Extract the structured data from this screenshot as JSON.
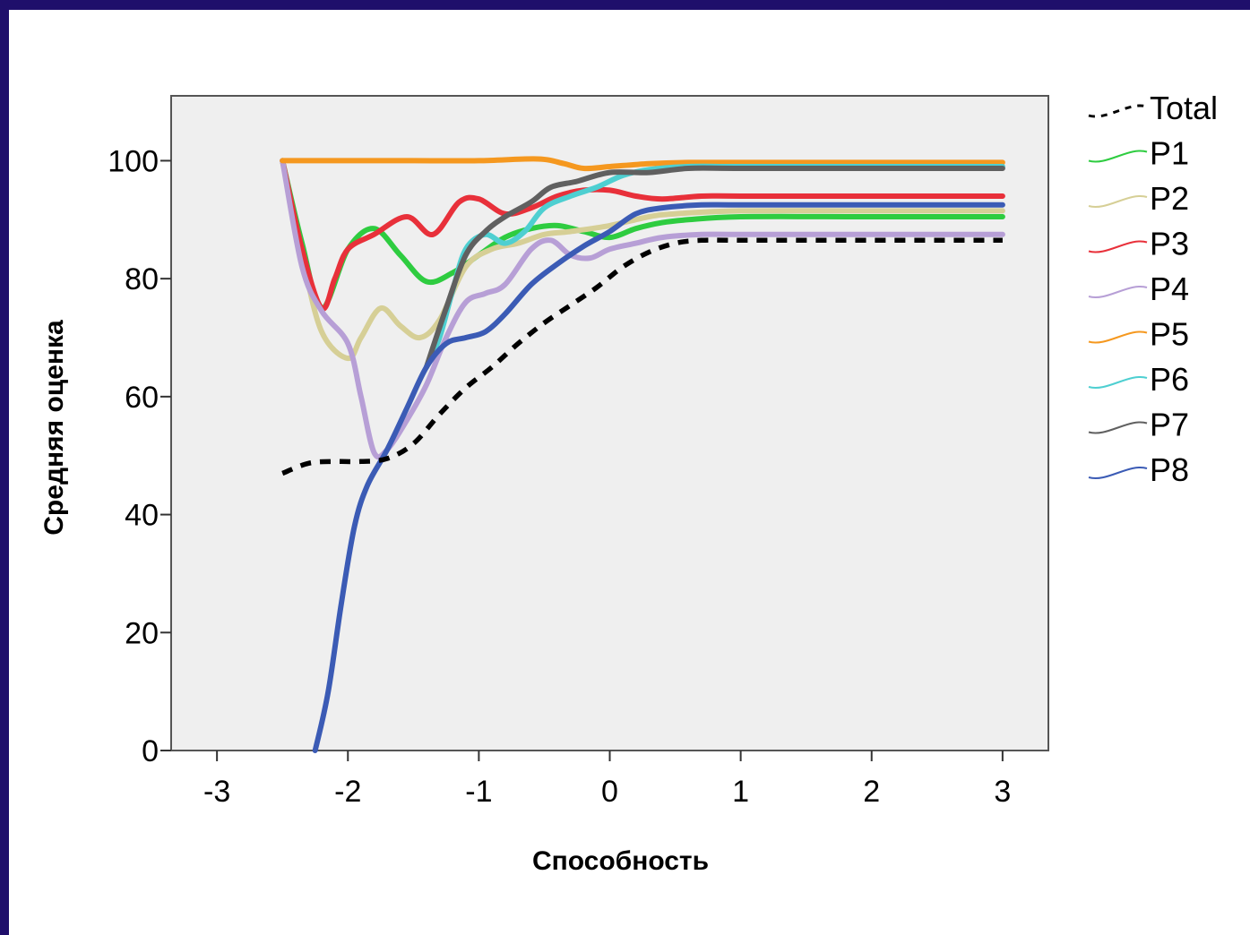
{
  "chart_data": {
    "type": "line",
    "xlabel": "Способность",
    "ylabel": "Средняя оценка",
    "xlim": [
      -3.35,
      3.35
    ],
    "ylim": [
      0,
      111
    ],
    "x_ticks": [
      -3,
      -2,
      -1,
      0,
      1,
      2,
      3
    ],
    "x_tick_labels": [
      "-3",
      "-2",
      "-1",
      "0",
      "1",
      "2",
      "3"
    ],
    "y_ticks": [
      0,
      20,
      40,
      60,
      80,
      100
    ],
    "y_tick_labels": [
      "0",
      "20",
      "40",
      "60",
      "80",
      "100"
    ],
    "grid": false,
    "plot_background": "#efefef",
    "legend_position": "right",
    "series": [
      {
        "name": "Total",
        "color": "#000000",
        "dashed": true,
        "points": [
          [
            -2.5,
            47
          ],
          [
            -2.3,
            48.7
          ],
          [
            -2.1,
            49
          ],
          [
            -1.9,
            49
          ],
          [
            -1.7,
            49.5
          ],
          [
            -1.5,
            52
          ],
          [
            -1.3,
            57
          ],
          [
            -1.1,
            61.5
          ],
          [
            -0.9,
            65
          ],
          [
            -0.7,
            69
          ],
          [
            -0.5,
            72.5
          ],
          [
            -0.3,
            75.5
          ],
          [
            -0.1,
            78.5
          ],
          [
            0.1,
            82
          ],
          [
            0.3,
            84.5
          ],
          [
            0.5,
            86
          ],
          [
            0.7,
            86.5
          ],
          [
            1.0,
            86.5
          ],
          [
            2.0,
            86.5
          ],
          [
            3.0,
            86.5
          ]
        ]
      },
      {
        "name": "P1",
        "color": "#2ecc40",
        "dashed": false,
        "points": [
          [
            -2.5,
            100
          ],
          [
            -2.35,
            86
          ],
          [
            -2.2,
            75
          ],
          [
            -2.0,
            85
          ],
          [
            -1.8,
            88.5
          ],
          [
            -1.6,
            84
          ],
          [
            -1.4,
            79.5
          ],
          [
            -1.2,
            81
          ],
          [
            -1.0,
            84
          ],
          [
            -0.8,
            87
          ],
          [
            -0.6,
            88.5
          ],
          [
            -0.4,
            89
          ],
          [
            -0.2,
            88
          ],
          [
            0.0,
            87
          ],
          [
            0.2,
            88.5
          ],
          [
            0.4,
            89.5
          ],
          [
            0.6,
            90
          ],
          [
            1.0,
            90.5
          ],
          [
            2.0,
            90.5
          ],
          [
            3.0,
            90.5
          ]
        ]
      },
      {
        "name": "P2",
        "color": "#d6cf96",
        "dashed": false,
        "points": [
          [
            -2.5,
            100
          ],
          [
            -2.35,
            84
          ],
          [
            -2.2,
            71
          ],
          [
            -2.0,
            66.5
          ],
          [
            -1.9,
            70
          ],
          [
            -1.75,
            75
          ],
          [
            -1.6,
            72
          ],
          [
            -1.45,
            70
          ],
          [
            -1.3,
            73
          ],
          [
            -1.1,
            82
          ],
          [
            -0.9,
            85
          ],
          [
            -0.7,
            86
          ],
          [
            -0.5,
            87.5
          ],
          [
            -0.3,
            88
          ],
          [
            0.0,
            89
          ],
          [
            0.3,
            90.5
          ],
          [
            0.5,
            91
          ],
          [
            1.0,
            91.5
          ],
          [
            2.0,
            91.5
          ],
          [
            3.0,
            91.5
          ]
        ]
      },
      {
        "name": "P3",
        "color": "#e8303a",
        "dashed": false,
        "points": [
          [
            -2.5,
            100
          ],
          [
            -2.35,
            85
          ],
          [
            -2.2,
            75
          ],
          [
            -2.1,
            80
          ],
          [
            -2.0,
            85
          ],
          [
            -1.8,
            87.5
          ],
          [
            -1.55,
            90.5
          ],
          [
            -1.35,
            87.5
          ],
          [
            -1.15,
            93
          ],
          [
            -1.0,
            93.5
          ],
          [
            -0.8,
            91
          ],
          [
            -0.6,
            92
          ],
          [
            -0.4,
            94
          ],
          [
            -0.2,
            95
          ],
          [
            0.0,
            95
          ],
          [
            0.2,
            94
          ],
          [
            0.4,
            93.5
          ],
          [
            0.7,
            94
          ],
          [
            1.0,
            94
          ],
          [
            2.0,
            94
          ],
          [
            3.0,
            94
          ]
        ]
      },
      {
        "name": "P4",
        "color": "#b79fd6",
        "dashed": false,
        "points": [
          [
            -2.5,
            100
          ],
          [
            -2.35,
            82
          ],
          [
            -2.2,
            74.5
          ],
          [
            -2.0,
            69
          ],
          [
            -1.9,
            60
          ],
          [
            -1.8,
            50.5
          ],
          [
            -1.7,
            51
          ],
          [
            -1.55,
            56
          ],
          [
            -1.4,
            62
          ],
          [
            -1.25,
            70
          ],
          [
            -1.1,
            76
          ],
          [
            -0.95,
            77.5
          ],
          [
            -0.8,
            79
          ],
          [
            -0.6,
            85
          ],
          [
            -0.45,
            86.5
          ],
          [
            -0.3,
            84
          ],
          [
            -0.15,
            83.5
          ],
          [
            0.0,
            85
          ],
          [
            0.2,
            86
          ],
          [
            0.4,
            87
          ],
          [
            0.7,
            87.5
          ],
          [
            1.0,
            87.5
          ],
          [
            2.0,
            87.5
          ],
          [
            3.0,
            87.5
          ]
        ]
      },
      {
        "name": "P5",
        "color": "#f5981f",
        "dashed": false,
        "points": [
          [
            -2.5,
            100
          ],
          [
            -2.0,
            100
          ],
          [
            -1.5,
            100
          ],
          [
            -1.0,
            100
          ],
          [
            -0.55,
            100.3
          ],
          [
            -0.35,
            99.5
          ],
          [
            -0.2,
            98.7
          ],
          [
            0.0,
            99
          ],
          [
            0.3,
            99.5
          ],
          [
            0.6,
            99.7
          ],
          [
            1.0,
            99.7
          ],
          [
            2.0,
            99.7
          ],
          [
            3.0,
            99.7
          ]
        ]
      },
      {
        "name": "P6",
        "color": "#4ecfd1",
        "dashed": false,
        "points": [
          [
            -1.4,
            65
          ],
          [
            -1.3,
            70
          ],
          [
            -1.2,
            78
          ],
          [
            -1.1,
            85
          ],
          [
            -0.95,
            87.5
          ],
          [
            -0.8,
            86
          ],
          [
            -0.65,
            88
          ],
          [
            -0.5,
            92
          ],
          [
            -0.3,
            94
          ],
          [
            -0.1,
            95.5
          ],
          [
            0.1,
            97.5
          ],
          [
            0.3,
            98.5
          ],
          [
            0.6,
            99
          ],
          [
            1.0,
            99
          ],
          [
            2.0,
            99
          ],
          [
            3.0,
            99
          ]
        ]
      },
      {
        "name": "P7",
        "color": "#606060",
        "dashed": false,
        "points": [
          [
            -1.4,
            65
          ],
          [
            -1.25,
            75
          ],
          [
            -1.1,
            84
          ],
          [
            -0.95,
            88
          ],
          [
            -0.8,
            90.5
          ],
          [
            -0.6,
            93
          ],
          [
            -0.45,
            95.5
          ],
          [
            -0.25,
            96.5
          ],
          [
            0.0,
            98
          ],
          [
            0.3,
            98
          ],
          [
            0.6,
            98.7
          ],
          [
            1.0,
            98.7
          ],
          [
            2.0,
            98.7
          ],
          [
            3.0,
            98.7
          ]
        ]
      },
      {
        "name": "P8",
        "color": "#3b5bb5",
        "dashed": false,
        "points": [
          [
            -2.25,
            0
          ],
          [
            -2.15,
            10
          ],
          [
            -2.05,
            25
          ],
          [
            -1.95,
            38
          ],
          [
            -1.85,
            45
          ],
          [
            -1.7,
            51
          ],
          [
            -1.55,
            58
          ],
          [
            -1.4,
            65
          ],
          [
            -1.25,
            69
          ],
          [
            -1.1,
            70
          ],
          [
            -0.95,
            71
          ],
          [
            -0.8,
            74
          ],
          [
            -0.6,
            79
          ],
          [
            -0.4,
            82.5
          ],
          [
            -0.2,
            85.5
          ],
          [
            0.0,
            88
          ],
          [
            0.2,
            91
          ],
          [
            0.4,
            92
          ],
          [
            0.7,
            92.5
          ],
          [
            1.0,
            92.5
          ],
          [
            2.0,
            92.5
          ],
          [
            3.0,
            92.5
          ]
        ]
      }
    ]
  }
}
